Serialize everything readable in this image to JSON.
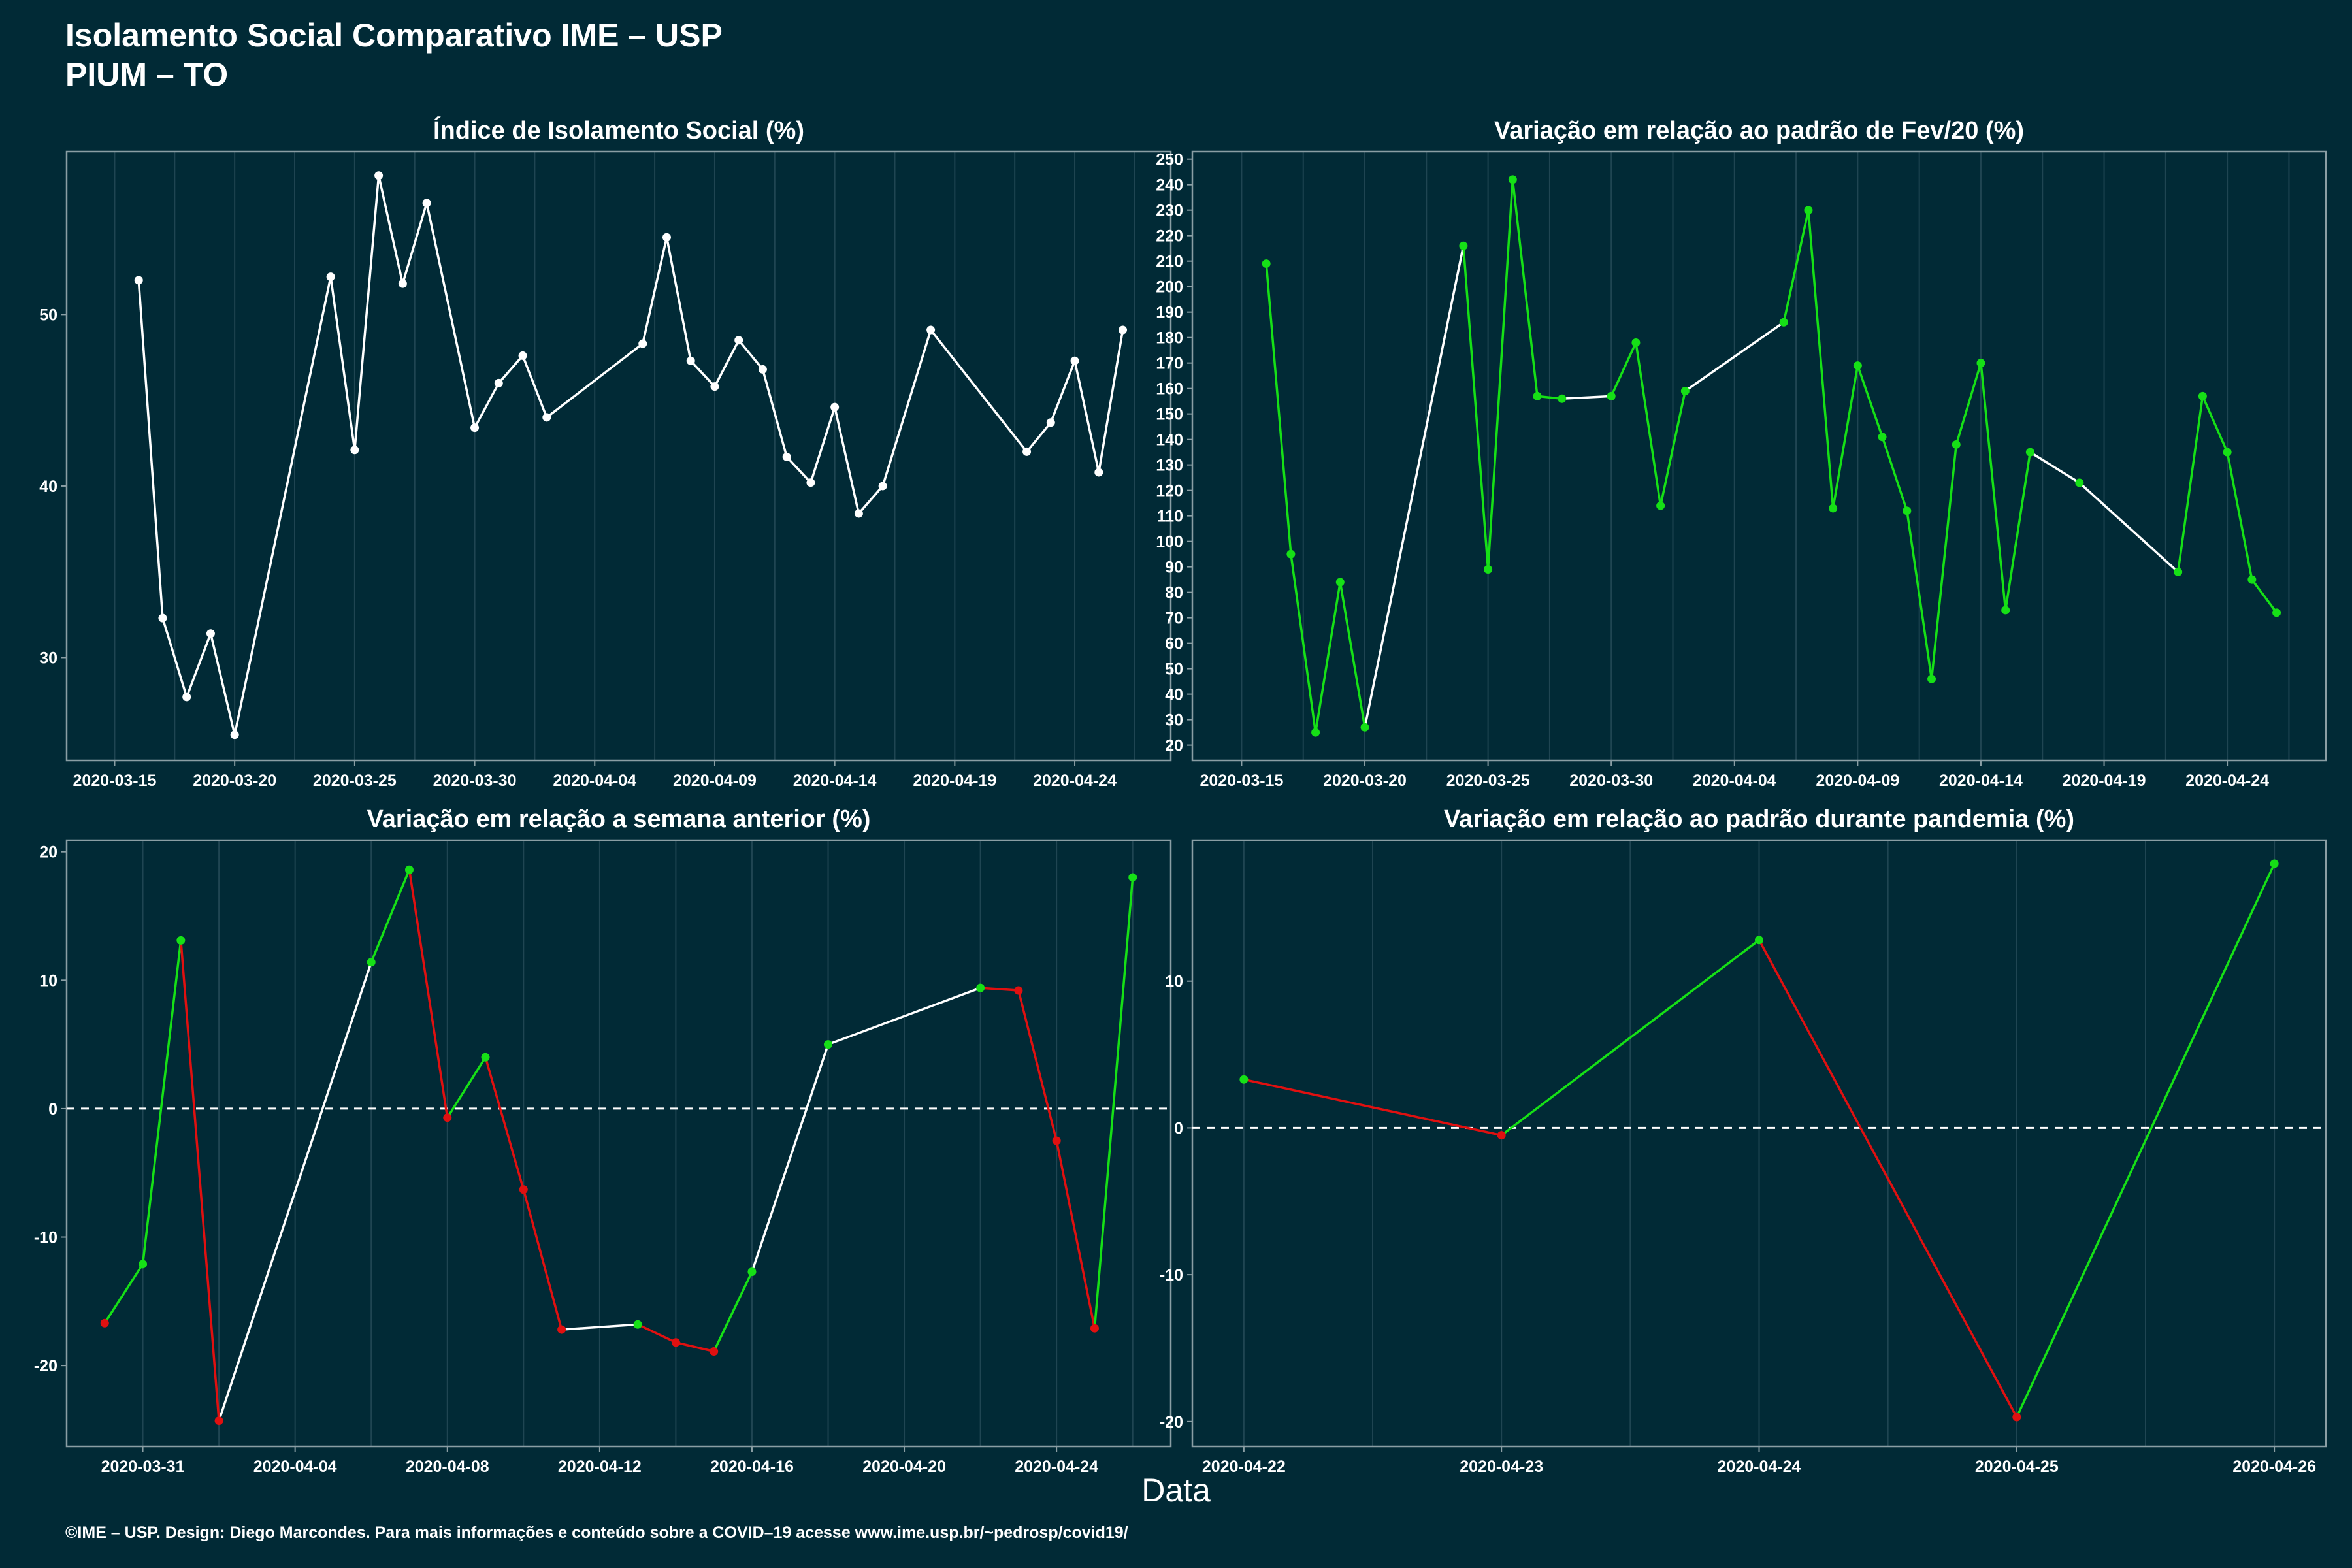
{
  "header": {
    "title": "Isolamento Social Comparativo IME – USP",
    "subtitle": "PIUM – TO"
  },
  "x_axis_title": "Data",
  "footer": "©IME – USP. Design: Diego Marcondes. Para mais informações e conteúdo sobre a COVID–19 acesse www.ime.usp.br/~pedrosp/covid19/",
  "colors": {
    "background": "#012a36",
    "panel_border": "#8a9ea4",
    "grid": "#1f4552",
    "line_neutral": "#ffffff",
    "line_up": "#16e016",
    "line_down": "#e01010"
  },
  "chart_data": [
    {
      "id": "isolamento",
      "type": "line",
      "title": "Índice de Isolamento Social (%)",
      "color_mode": "neutral",
      "xlim": [
        "2020-03-13",
        "2020-04-28"
      ],
      "ylim": [
        24.0,
        59.5
      ],
      "yticks": [
        30,
        40,
        50
      ],
      "xticks": [
        "2020-03-15",
        "2020-03-20",
        "2020-03-25",
        "2020-03-30",
        "2020-04-04",
        "2020-04-09",
        "2020-04-14",
        "2020-04-19",
        "2020-04-24"
      ],
      "dashed_zero": false,
      "points": [
        {
          "x": "2020-03-16",
          "y": 52.0
        },
        {
          "x": "2020-03-17",
          "y": 32.3
        },
        {
          "x": "2020-03-18",
          "y": 27.7
        },
        {
          "x": "2020-03-19",
          "y": 31.4
        },
        {
          "x": "2020-03-20",
          "y": 25.5
        },
        {
          "x": "2020-03-24",
          "y": 52.2
        },
        {
          "x": "2020-03-25",
          "y": 42.1
        },
        {
          "x": "2020-03-26",
          "y": 58.1
        },
        {
          "x": "2020-03-27",
          "y": 51.8
        },
        {
          "x": "2020-03-28",
          "y": 56.5
        },
        {
          "x": "2020-03-30",
          "y": 43.4
        },
        {
          "x": "2020-03-31",
          "y": 46.0
        },
        {
          "x": "2020-04-01",
          "y": 47.6
        },
        {
          "x": "2020-04-02",
          "y": 44.0
        },
        {
          "x": "2020-04-06",
          "y": 48.3
        },
        {
          "x": "2020-04-07",
          "y": 54.5
        },
        {
          "x": "2020-04-08",
          "y": 47.3
        },
        {
          "x": "2020-04-09",
          "y": 45.8
        },
        {
          "x": "2020-04-10",
          "y": 48.5
        },
        {
          "x": "2020-04-11",
          "y": 46.8
        },
        {
          "x": "2020-04-12",
          "y": 41.7
        },
        {
          "x": "2020-04-13",
          "y": 40.2
        },
        {
          "x": "2020-04-14",
          "y": 44.6
        },
        {
          "x": "2020-04-15",
          "y": 38.4
        },
        {
          "x": "2020-04-16",
          "y": 40.0
        },
        {
          "x": "2020-04-18",
          "y": 49.1
        },
        {
          "x": "2020-04-22",
          "y": 42.0
        },
        {
          "x": "2020-04-23",
          "y": 43.7
        },
        {
          "x": "2020-04-24",
          "y": 47.3
        },
        {
          "x": "2020-04-25",
          "y": 40.8
        },
        {
          "x": "2020-04-26",
          "y": 49.1
        }
      ]
    },
    {
      "id": "fev20",
      "type": "line",
      "title": "Variação em relação ao padrão de Fev/20 (%)",
      "color_mode": "sign",
      "xlim": [
        "2020-03-13",
        "2020-04-28"
      ],
      "ylim": [
        14,
        253
      ],
      "yticks": [
        20,
        30,
        40,
        50,
        60,
        70,
        80,
        90,
        100,
        110,
        120,
        130,
        140,
        150,
        160,
        170,
        180,
        190,
        200,
        210,
        220,
        230,
        240,
        250
      ],
      "xticks": [
        "2020-03-15",
        "2020-03-20",
        "2020-03-25",
        "2020-03-30",
        "2020-04-04",
        "2020-04-09",
        "2020-04-14",
        "2020-04-19",
        "2020-04-24"
      ],
      "dashed_zero": false,
      "points": [
        {
          "x": "2020-03-16",
          "y": 209
        },
        {
          "x": "2020-03-17",
          "y": 95
        },
        {
          "x": "2020-03-18",
          "y": 25
        },
        {
          "x": "2020-03-19",
          "y": 84
        },
        {
          "x": "2020-03-20",
          "y": 27
        },
        {
          "x": "2020-03-24",
          "y": 216
        },
        {
          "x": "2020-03-25",
          "y": 89
        },
        {
          "x": "2020-03-26",
          "y": 242
        },
        {
          "x": "2020-03-27",
          "y": 157
        },
        {
          "x": "2020-03-28",
          "y": 156
        },
        {
          "x": "2020-03-30",
          "y": 157
        },
        {
          "x": "2020-03-31",
          "y": 178
        },
        {
          "x": "2020-04-01",
          "y": 114
        },
        {
          "x": "2020-04-02",
          "y": 159
        },
        {
          "x": "2020-04-06",
          "y": 186
        },
        {
          "x": "2020-04-07",
          "y": 230
        },
        {
          "x": "2020-04-08",
          "y": 113
        },
        {
          "x": "2020-04-09",
          "y": 169
        },
        {
          "x": "2020-04-10",
          "y": 141
        },
        {
          "x": "2020-04-11",
          "y": 112
        },
        {
          "x": "2020-04-12",
          "y": 46
        },
        {
          "x": "2020-04-13",
          "y": 138
        },
        {
          "x": "2020-04-14",
          "y": 170
        },
        {
          "x": "2020-04-15",
          "y": 73
        },
        {
          "x": "2020-04-16",
          "y": 135
        },
        {
          "x": "2020-04-18",
          "y": 123
        },
        {
          "x": "2020-04-22",
          "y": 88
        },
        {
          "x": "2020-04-23",
          "y": 157
        },
        {
          "x": "2020-04-24",
          "y": 135
        },
        {
          "x": "2020-04-25",
          "y": 85
        },
        {
          "x": "2020-04-26",
          "y": 72
        }
      ]
    },
    {
      "id": "semana",
      "type": "line",
      "title": "Variação em relação a semana anterior (%)",
      "color_mode": "change",
      "xlim": [
        "2020-03-29",
        "2020-04-27"
      ],
      "ylim": [
        -26.3,
        20.9
      ],
      "yticks": [
        -20,
        -10,
        0,
        10,
        20
      ],
      "xticks": [
        "2020-03-31",
        "2020-04-04",
        "2020-04-08",
        "2020-04-12",
        "2020-04-16",
        "2020-04-20",
        "2020-04-24"
      ],
      "dashed_zero": true,
      "points": [
        {
          "x": "2020-03-30",
          "y": -16.7
        },
        {
          "x": "2020-03-31",
          "y": -12.1
        },
        {
          "x": "2020-04-01",
          "y": 13.1
        },
        {
          "x": "2020-04-02",
          "y": -24.3
        },
        {
          "x": "2020-04-06",
          "y": 11.4
        },
        {
          "x": "2020-04-07",
          "y": 18.6
        },
        {
          "x": "2020-04-08",
          "y": -0.7
        },
        {
          "x": "2020-04-09",
          "y": 4.0
        },
        {
          "x": "2020-04-10",
          "y": -6.3
        },
        {
          "x": "2020-04-11",
          "y": -17.2
        },
        {
          "x": "2020-04-13",
          "y": -16.8
        },
        {
          "x": "2020-04-14",
          "y": -18.2
        },
        {
          "x": "2020-04-15",
          "y": -18.9
        },
        {
          "x": "2020-04-16",
          "y": -12.7
        },
        {
          "x": "2020-04-18",
          "y": 5.0
        },
        {
          "x": "2020-04-22",
          "y": 9.4
        },
        {
          "x": "2020-04-23",
          "y": 9.2
        },
        {
          "x": "2020-04-24",
          "y": -2.5
        },
        {
          "x": "2020-04-25",
          "y": -17.1
        },
        {
          "x": "2020-04-26",
          "y": 18.0
        }
      ]
    },
    {
      "id": "pandemia",
      "type": "line",
      "title": "Variação em relação ao padrão durante pandemia (%)",
      "color_mode": "change",
      "xlim": [
        "2020-04-21T19:12",
        "2020-04-26T04:48"
      ],
      "ylim": [
        -21.7,
        19.6
      ],
      "yticks": [
        -20,
        -10,
        0,
        10
      ],
      "xticks": [
        "2020-04-22",
        "2020-04-23",
        "2020-04-24",
        "2020-04-25",
        "2020-04-26"
      ],
      "dashed_zero": true,
      "points": [
        {
          "x": "2020-04-22",
          "y": 3.3
        },
        {
          "x": "2020-04-23",
          "y": -0.5
        },
        {
          "x": "2020-04-24",
          "y": 12.8
        },
        {
          "x": "2020-04-25",
          "y": -19.7
        },
        {
          "x": "2020-04-26",
          "y": 18.0
        }
      ]
    }
  ]
}
